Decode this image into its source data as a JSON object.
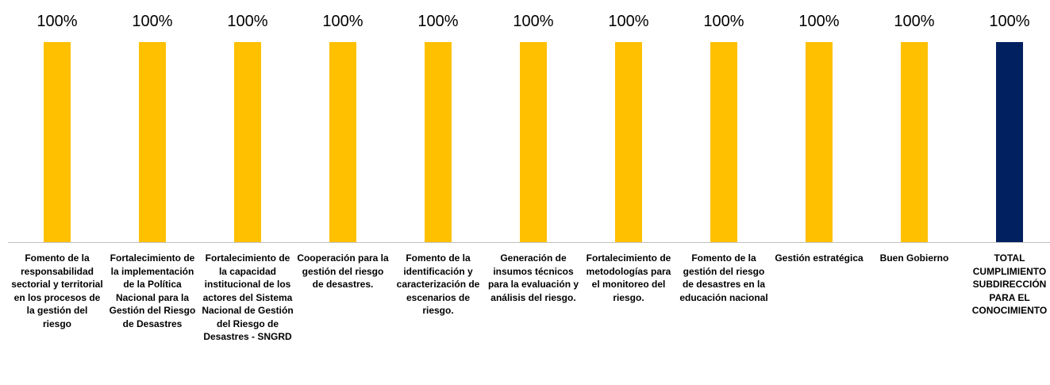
{
  "chart_data": {
    "type": "bar",
    "categories": [
      "Fomento de la responsabilidad sectorial y territorial en los procesos de la gestión del riesgo",
      "Fortalecimiento de la implementación de la Política Nacional para la Gestión del Riesgo de Desastres",
      "Fortalecimiento de la capacidad institucional de los actores del Sistema Nacional de Gestión del Riesgo de Desastres - SNGRD",
      "Cooperación para la gestión del riesgo de desastres.",
      "Fomento de la identificación y caracterización de escenarios de riesgo.",
      "Generación de insumos técnicos para la evaluación y análisis del riesgo.",
      "Fortalecimiento de metodologías para el monitoreo del riesgo.",
      "Fomento de la gestión del riesgo de desastres en la educación nacional",
      "Gestión estratégica",
      "Buen Gobierno",
      "TOTAL CUMPLIMIENTO SUBDIRECCIÓN PARA EL CONOCIMIENTO"
    ],
    "values": [
      100,
      100,
      100,
      100,
      100,
      100,
      100,
      100,
      100,
      100,
      100
    ],
    "value_labels": [
      "100%",
      "100%",
      "100%",
      "100%",
      "100%",
      "100%",
      "100%",
      "100%",
      "100%",
      "100%",
      "100%"
    ],
    "colors": [
      "#FFC000",
      "#FFC000",
      "#FFC000",
      "#FFC000",
      "#FFC000",
      "#FFC000",
      "#FFC000",
      "#FFC000",
      "#FFC000",
      "#FFC000",
      "#002060"
    ],
    "ylim": [
      0,
      100
    ]
  }
}
